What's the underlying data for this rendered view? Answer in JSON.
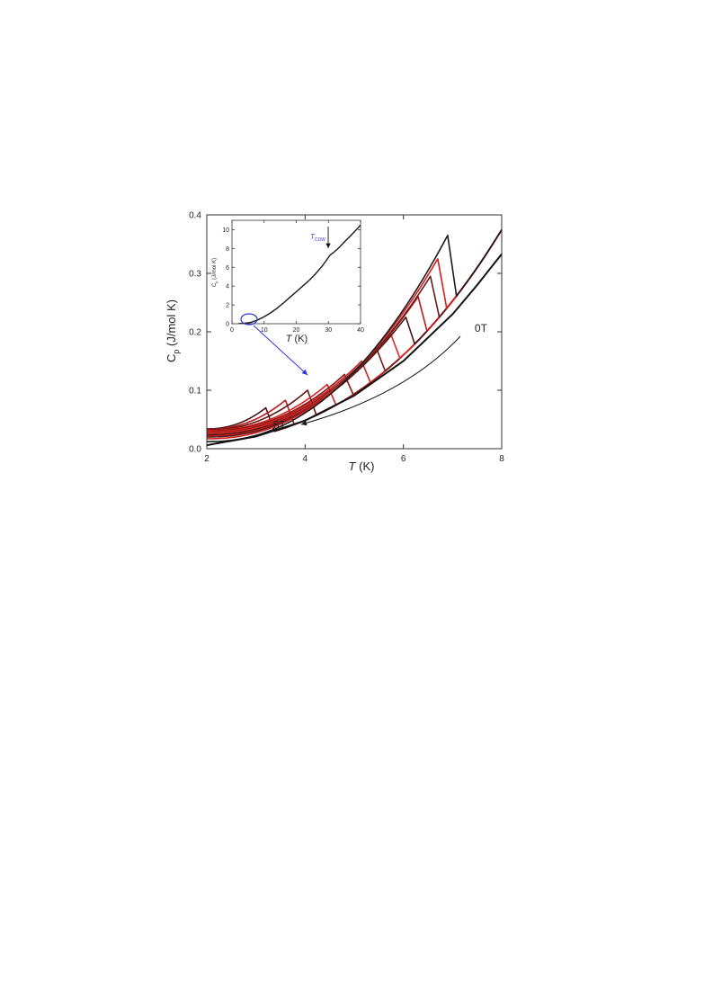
{
  "chart_data": [
    {
      "type": "line",
      "id": "main",
      "xlabel": "T (K)",
      "ylabel": "C_p (J/mol K)",
      "xlim": [
        2,
        8
      ],
      "ylim": [
        0,
        0.4
      ],
      "xticks": [
        2,
        4,
        6,
        8
      ],
      "yticks": [
        0.0,
        0.1,
        0.2,
        0.3,
        0.4
      ],
      "xtick_labels": [
        "2",
        "4",
        "6",
        "8"
      ],
      "ytick_labels": [
        "0.0",
        "0.1",
        "0.2",
        "0.3",
        "0.4"
      ],
      "grid": false,
      "base_curve": {
        "coef": 0.000812,
        "power": 2.95
      },
      "normal_state_x": [
        2.0,
        3.0,
        4.0,
        5.0,
        6.0,
        7.0,
        7.5,
        8.0
      ],
      "normal_state_y": [
        0.006,
        0.021,
        0.048,
        0.091,
        0.15,
        0.23,
        0.28,
        0.333
      ],
      "series": [
        {
          "field_index": 0,
          "color": "#1c1c1c",
          "tc": 6.9,
          "peak": 0.365,
          "low_start": 0.012
        },
        {
          "field_index": 1,
          "color": "#d81e1e",
          "tc": 6.7,
          "peak": 0.325,
          "low_start": 0.017
        },
        {
          "field_index": 2,
          "color": "#5a1f1f",
          "tc": 6.55,
          "peak": 0.295,
          "low_start": 0.02
        },
        {
          "field_index": 3,
          "color": "#c31818",
          "tc": 6.3,
          "peak": 0.26,
          "low_start": 0.022
        },
        {
          "field_index": 4,
          "color": "#451818",
          "tc": 6.05,
          "peak": 0.225,
          "low_start": 0.024
        },
        {
          "field_index": 5,
          "color": "#e02a2a",
          "tc": 5.75,
          "peak": 0.195,
          "low_start": 0.026
        },
        {
          "field_index": 6,
          "color": "#7a1a1a",
          "tc": 5.45,
          "peak": 0.172,
          "low_start": 0.027
        },
        {
          "field_index": 7,
          "color": "#cc2020",
          "tc": 5.15,
          "peak": 0.15,
          "low_start": 0.029
        },
        {
          "field_index": 8,
          "color": "#8a1616",
          "tc": 4.8,
          "peak": 0.127,
          "low_start": 0.03
        },
        {
          "field_index": 9,
          "color": "#d42424",
          "tc": 4.45,
          "peak": 0.11,
          "low_start": 0.031
        },
        {
          "field_index": 10,
          "color": "#611515",
          "tc": 4.05,
          "peak": 0.1,
          "low_start": 0.032
        },
        {
          "field_index": 11,
          "color": "#b81a1a",
          "tc": 3.6,
          "peak": 0.083,
          "low_start": 0.033
        },
        {
          "field_index": 12,
          "color": "#4a1414",
          "tc": 3.2,
          "peak": 0.07,
          "low_start": 0.034
        }
      ],
      "annotations": [
        {
          "text": "0T",
          "x": 7.45,
          "y": 0.2
        },
        {
          "text": "6T",
          "x": 3.35,
          "y": 0.035
        }
      ]
    },
    {
      "type": "line",
      "id": "inset",
      "xlabel": "T (K)",
      "ylabel": "C_p (J/mol K)",
      "xlim": [
        0,
        40
      ],
      "ylim": [
        0,
        11
      ],
      "xticks": [
        0,
        10,
        20,
        30,
        40
      ],
      "yticks": [
        0,
        2,
        4,
        6,
        8,
        10
      ],
      "xtick_labels": [
        "0",
        "10",
        "20",
        "30",
        "40"
      ],
      "ytick_labels": [
        "0",
        "2",
        "4",
        "6",
        "8",
        "10"
      ],
      "color": "#1a1a1a",
      "x": [
        2,
        4,
        6,
        8,
        10,
        12,
        14,
        16,
        18,
        20,
        22,
        24,
        26,
        28,
        29.5,
        30.5,
        31.5,
        33,
        35,
        37,
        39,
        40
      ],
      "y": [
        0.01,
        0.05,
        0.15,
        0.4,
        0.75,
        1.15,
        1.65,
        2.2,
        2.8,
        3.4,
        4.0,
        4.6,
        5.3,
        6.1,
        6.8,
        7.3,
        7.55,
        8.0,
        8.7,
        9.4,
        10.1,
        10.5
      ],
      "marker": {
        "label": "T",
        "subscript": "CDW",
        "x": 30.5
      }
    }
  ]
}
